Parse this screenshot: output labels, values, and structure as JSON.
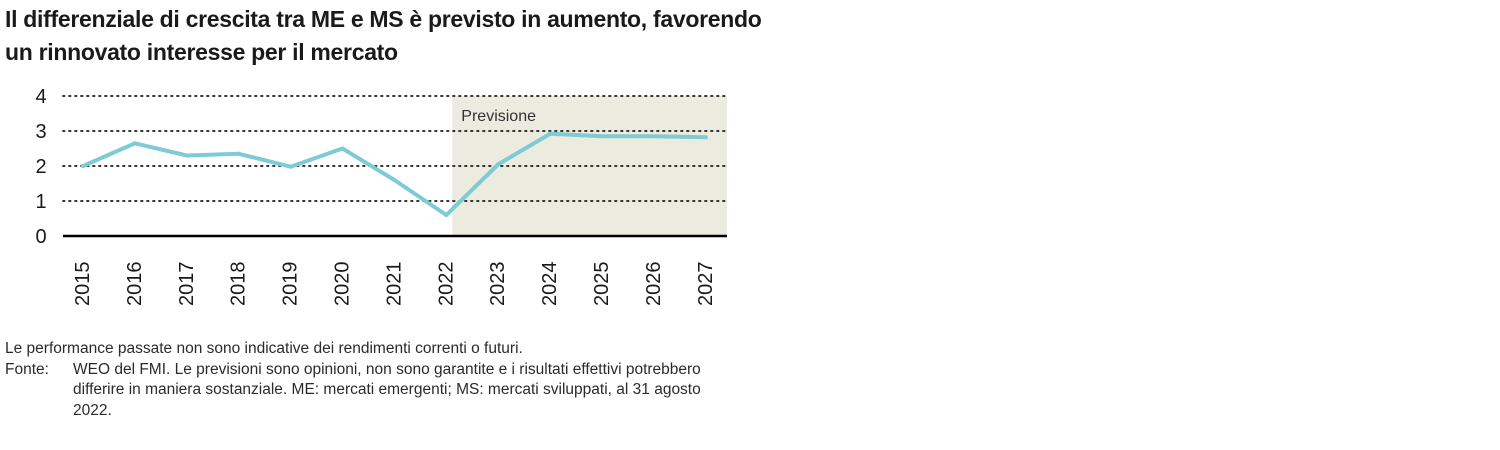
{
  "chart_data": {
    "type": "line",
    "title": "Il differenziale di crescita tra ME e MS è previsto in aumento, favorendo un rinnovato interesse per il mercato",
    "x": [
      "2015",
      "2016",
      "2017",
      "2018",
      "2019",
      "2020",
      "2021",
      "2022",
      "2023",
      "2024",
      "2025",
      "2026",
      "2027"
    ],
    "series": [
      {
        "values": [
          2.0,
          2.65,
          2.3,
          2.35,
          1.98,
          2.5,
          1.6,
          0.6,
          2.05,
          2.92,
          2.85,
          2.85,
          2.82
        ]
      }
    ],
    "ylim": [
      0,
      4
    ],
    "yticks": [
      0,
      1,
      2,
      3,
      4
    ],
    "grid": true,
    "forecast_region": {
      "from": "2022",
      "to": "2027",
      "label": "Previsione"
    },
    "colors": {
      "line": "#7ecbd6",
      "forecast_band": "#ebebdf",
      "grid": "#1a1a1a"
    }
  },
  "notes": {
    "performance": "Le performance passate non sono indicative dei rendimenti correnti o futuri.",
    "source_label": "Fonte:",
    "source_text": "WEO del FMI. Le previsioni sono opinioni, non sono garantite e i risultati effettivi potrebbero differire in maniera sostanziale. ME: mercati emergenti; MS: mercati sviluppati, al 31 agosto 2022."
  }
}
